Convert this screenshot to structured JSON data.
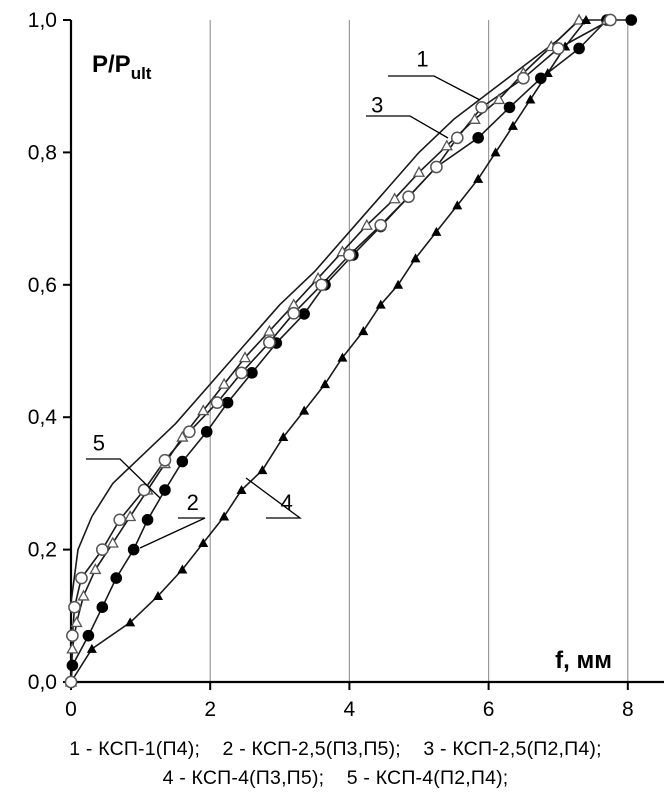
{
  "chart_data": {
    "type": "line",
    "title": "",
    "ylabel_main": "P/P",
    "ylabel_sub": "ult",
    "xlabel": "f, мм",
    "xlim": [
      0,
      8.4
    ],
    "ylim": [
      0,
      1.0
    ],
    "xticks": [
      0,
      2,
      4,
      6,
      8
    ],
    "xtick_labels": [
      "0",
      "2",
      "4",
      "6",
      "8"
    ],
    "yticks": [
      0,
      0.2,
      0.4,
      0.6,
      0.8,
      1.0
    ],
    "ytick_labels": [
      "0,0",
      "0,2",
      "0,4",
      "0,6",
      "0,8",
      "1,0"
    ],
    "grid": "vertical",
    "series": [
      {
        "label": "1",
        "marker": "none",
        "x": [
          0,
          0.1,
          0.3,
          0.6,
          1.0,
          1.5,
          2.0,
          2.5,
          3.0,
          3.5,
          4.0,
          4.5,
          5.0,
          5.5,
          6.0,
          6.5,
          7.0,
          7.3
        ],
        "y": [
          0.12,
          0.2,
          0.25,
          0.3,
          0.34,
          0.39,
          0.45,
          0.51,
          0.57,
          0.62,
          0.68,
          0.74,
          0.8,
          0.85,
          0.89,
          0.93,
          0.97,
          1.0
        ]
      },
      {
        "label": "2",
        "marker": "filled-circle",
        "x": [
          0,
          0.02,
          0.25,
          0.45,
          0.65,
          0.9,
          1.1,
          1.35,
          1.6,
          1.95,
          2.25,
          2.6,
          2.95,
          3.35,
          3.65,
          4.05,
          4.45,
          4.85,
          5.25,
          5.85,
          6.3,
          6.75,
          7.3,
          7.7,
          8.05
        ],
        "y": [
          0.0,
          0.025,
          0.07,
          0.113,
          0.157,
          0.2,
          0.245,
          0.29,
          0.333,
          0.378,
          0.422,
          0.467,
          0.512,
          0.556,
          0.6,
          0.645,
          0.688,
          0.733,
          0.778,
          0.822,
          0.868,
          0.912,
          0.957,
          1.0,
          1.0
        ]
      },
      {
        "label": "3",
        "marker": "open-triangle",
        "x": [
          0,
          0.02,
          0.08,
          0.18,
          0.35,
          0.6,
          0.85,
          1.1,
          1.35,
          1.6,
          1.9,
          2.2,
          2.5,
          2.85,
          3.2,
          3.55,
          3.9,
          4.25,
          4.65,
          5.0,
          5.4,
          5.8,
          6.15,
          6.5,
          6.9,
          7.3,
          7.7
        ],
        "y": [
          0.0,
          0.05,
          0.09,
          0.13,
          0.17,
          0.21,
          0.25,
          0.29,
          0.33,
          0.37,
          0.41,
          0.45,
          0.49,
          0.53,
          0.57,
          0.61,
          0.65,
          0.69,
          0.73,
          0.77,
          0.81,
          0.85,
          0.88,
          0.92,
          0.96,
          1.0,
          1.0
        ]
      },
      {
        "label": "4",
        "marker": "filled-triangle",
        "x": [
          0,
          0.3,
          0.85,
          1.25,
          1.6,
          1.9,
          2.2,
          2.45,
          2.75,
          3.05,
          3.35,
          3.65,
          3.9,
          4.2,
          4.45,
          4.7,
          4.95,
          5.25,
          5.55,
          5.85,
          6.1,
          6.35,
          6.6,
          6.85,
          7.1,
          7.4
        ],
        "y": [
          0.0,
          0.05,
          0.09,
          0.13,
          0.17,
          0.21,
          0.25,
          0.29,
          0.32,
          0.37,
          0.41,
          0.45,
          0.49,
          0.53,
          0.57,
          0.6,
          0.64,
          0.68,
          0.72,
          0.76,
          0.8,
          0.84,
          0.88,
          0.92,
          0.96,
          1.0
        ]
      },
      {
        "label": "5",
        "marker": "open-circle",
        "x": [
          0,
          0.02,
          0.05,
          0.15,
          0.45,
          0.7,
          1.05,
          1.35,
          1.7,
          2.1,
          2.45,
          2.85,
          3.2,
          3.6,
          4.0,
          4.45,
          4.85,
          5.25,
          5.55,
          5.9,
          6.5,
          7.0,
          7.75
        ],
        "y": [
          0.0,
          0.07,
          0.113,
          0.157,
          0.2,
          0.245,
          0.29,
          0.335,
          0.378,
          0.422,
          0.467,
          0.513,
          0.557,
          0.6,
          0.645,
          0.69,
          0.733,
          0.778,
          0.822,
          0.868,
          0.912,
          0.957,
          1.0
        ]
      }
    ],
    "curve_labels": [
      {
        "text": "1",
        "x": 5.05,
        "y": 0.93
      },
      {
        "text": "2",
        "x": 1.75,
        "y": 0.26
      },
      {
        "text": "3",
        "x": 4.4,
        "y": 0.86
      },
      {
        "text": "4",
        "x": 3.1,
        "y": 0.26
      },
      {
        "text": "5",
        "x": 0.4,
        "y": 0.35
      }
    ],
    "legend": [
      "1 - КСП-1(П4);    2 - КСП-2,5(П3,П5);    3 - КСП-2,5(П2,П4);",
      "4 - КСП-4(П3,П5);    5 - КСП-4(П2,П4);"
    ]
  }
}
